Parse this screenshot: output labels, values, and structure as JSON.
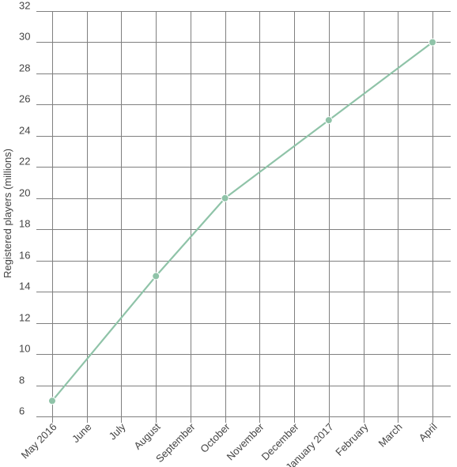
{
  "chart_data": {
    "type": "line",
    "title": "",
    "xlabel": "",
    "ylabel": "Registered players (millions)",
    "categories": [
      "May 2016",
      "June",
      "July",
      "August",
      "September",
      "October",
      "November",
      "December",
      "January 2017",
      "February",
      "March",
      "April"
    ],
    "series": [
      {
        "values": [
          7,
          null,
          null,
          15,
          null,
          20,
          null,
          null,
          25,
          null,
          null,
          30
        ]
      }
    ],
    "yticks": [
      6,
      8,
      10,
      12,
      14,
      16,
      18,
      20,
      22,
      24,
      26,
      28,
      30,
      32
    ],
    "ylim": [
      6,
      32
    ],
    "grid": true,
    "legend": "none",
    "colors": {
      "line": "#8fc3a8",
      "marker": "#8fc3a8",
      "grid": "#7f7f7f",
      "text": "#444444"
    }
  }
}
